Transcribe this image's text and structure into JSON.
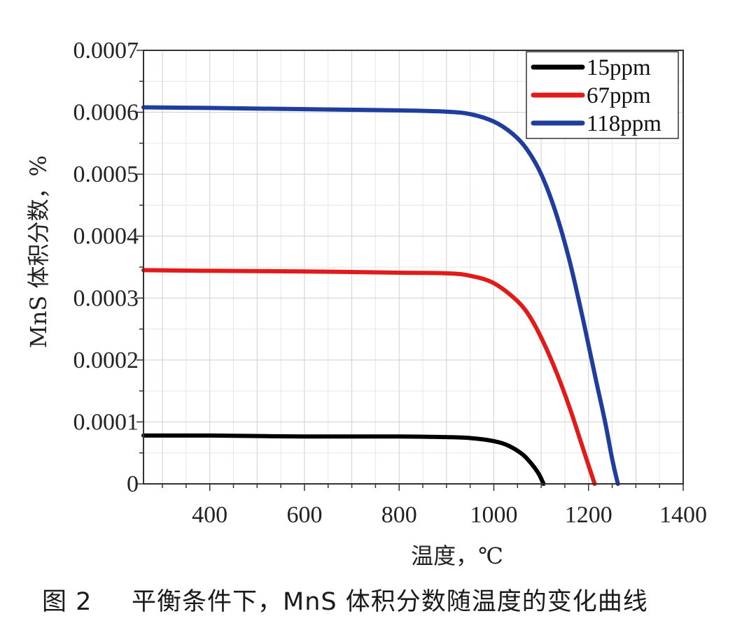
{
  "chart_data": {
    "type": "line",
    "xlabel": "温度，℃",
    "ylabel": "MnS 体积分数，%",
    "xlim": [
      260,
      1400
    ],
    "ylim": [
      0,
      0.0007
    ],
    "x_ticks": [
      400,
      600,
      800,
      1000,
      1200,
      1400
    ],
    "x_tick_labels": [
      "400",
      "600",
      "800",
      "1000",
      "1200",
      "1400"
    ],
    "y_ticks": [
      0,
      0.0001,
      0.0002,
      0.0003,
      0.0004,
      0.0005,
      0.0006,
      0.0007
    ],
    "y_tick_labels": [
      "0",
      "0.0001",
      "0.0002",
      "0.0003",
      "0.0004",
      "0.0005",
      "0.0006",
      "0.0007"
    ],
    "grid": true,
    "legend_position": "top-right",
    "series": [
      {
        "name": "15ppm",
        "color": "#000000",
        "x": [
          260,
          400,
          600,
          800,
          900,
          950,
          1000,
          1030,
          1060,
          1080,
          1095,
          1105
        ],
        "y": [
          7.8e-05,
          7.8e-05,
          7.65e-05,
          7.65e-05,
          7.55e-05,
          7.4e-05,
          6.9e-05,
          6.2e-05,
          4.8e-05,
          3.2e-05,
          1.6e-05,
          0.0
        ]
      },
      {
        "name": "67ppm",
        "color": "#e11a1a",
        "x": [
          260,
          400,
          600,
          800,
          900,
          950,
          1000,
          1050,
          1080,
          1110,
          1140,
          1165,
          1185,
          1200,
          1213
        ],
        "y": [
          0.000345,
          0.000344,
          0.000343,
          0.000341,
          0.00034,
          0.000336,
          0.000324,
          0.000295,
          0.000265,
          0.00022,
          0.000165,
          0.000112,
          6.5e-05,
          3e-05,
          0.0
        ]
      },
      {
        "name": "118ppm",
        "color": "#1f3d9c",
        "x": [
          260,
          400,
          600,
          800,
          900,
          950,
          1000,
          1040,
          1070,
          1100,
          1130,
          1160,
          1190,
          1215,
          1235,
          1250,
          1262
        ],
        "y": [
          0.000608,
          0.000607,
          0.000605,
          0.000603,
          0.000601,
          0.000597,
          0.000585,
          0.000565,
          0.00054,
          0.0005,
          0.00044,
          0.00036,
          0.00026,
          0.00017,
          0.0001,
          4e-05,
          0.0
        ]
      }
    ]
  },
  "caption": {
    "label": "图 2",
    "text": "平衡条件下，MnS 体积分数随温度的变化曲线"
  }
}
